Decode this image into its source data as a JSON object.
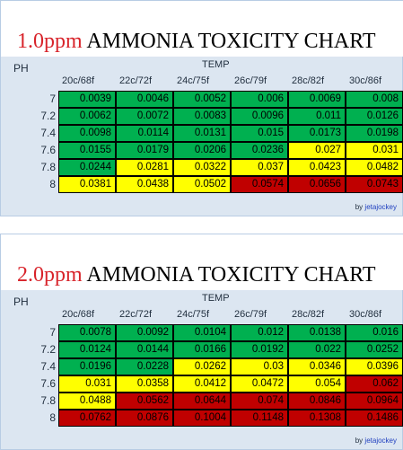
{
  "chart_data": [
    {
      "type": "table",
      "title_prefix": "1.0ppm",
      "title_main": "AMMONIA TOXICITY CHART",
      "row_label": "PH",
      "column_label": "TEMP",
      "columns": [
        "20c/68f",
        "22c/72f",
        "24c/75f",
        "26c/79f",
        "28c/82f",
        "30c/86f"
      ],
      "rows": [
        {
          "ph": "7",
          "values": [
            "0.0039",
            "0.0046",
            "0.0052",
            "0.006",
            "0.0069",
            "0.008"
          ],
          "colors": [
            "#00b050",
            "#00b050",
            "#00b050",
            "#00b050",
            "#00b050",
            "#00b050"
          ]
        },
        {
          "ph": "7.2",
          "values": [
            "0.0062",
            "0.0072",
            "0.0083",
            "0.0096",
            "0.011",
            "0.0126"
          ],
          "colors": [
            "#00b050",
            "#00b050",
            "#00b050",
            "#00b050",
            "#00b050",
            "#00b050"
          ]
        },
        {
          "ph": "7.4",
          "values": [
            "0.0098",
            "0.0114",
            "0.0131",
            "0.015",
            "0.0173",
            "0.0198"
          ],
          "colors": [
            "#00b050",
            "#00b050",
            "#00b050",
            "#00b050",
            "#00b050",
            "#00b050"
          ]
        },
        {
          "ph": "7.6",
          "values": [
            "0.0155",
            "0.0179",
            "0.0206",
            "0.0236",
            "0.027",
            "0.031"
          ],
          "colors": [
            "#00b050",
            "#00b050",
            "#00b050",
            "#00b050",
            "#ffff00",
            "#ffff00"
          ]
        },
        {
          "ph": "7.8",
          "values": [
            "0.0244",
            "0.0281",
            "0.0322",
            "0.037",
            "0.0423",
            "0.0482"
          ],
          "colors": [
            "#00b050",
            "#ffff00",
            "#ffff00",
            "#ffff00",
            "#ffff00",
            "#ffff00"
          ]
        },
        {
          "ph": "8",
          "values": [
            "0.0381",
            "0.0438",
            "0.0502",
            "0.0574",
            "0.0656",
            "0.0743"
          ],
          "colors": [
            "#ffff00",
            "#ffff00",
            "#ffff00",
            "#c00000",
            "#c00000",
            "#c00000"
          ]
        }
      ],
      "credit_prefix": "by",
      "credit_name": "jetajockey"
    },
    {
      "type": "table",
      "title_prefix": "2.0ppm",
      "title_main": "AMMONIA TOXICITY CHART",
      "row_label": "PH",
      "column_label": "TEMP",
      "columns": [
        "20c/68f",
        "22c/72f",
        "24c/75f",
        "26c/79f",
        "28c/82f",
        "30c/86f"
      ],
      "rows": [
        {
          "ph": "7",
          "values": [
            "0.0078",
            "0.0092",
            "0.0104",
            "0.012",
            "0.0138",
            "0.016"
          ],
          "colors": [
            "#00b050",
            "#00b050",
            "#00b050",
            "#00b050",
            "#00b050",
            "#00b050"
          ]
        },
        {
          "ph": "7.2",
          "values": [
            "0.0124",
            "0.0144",
            "0.0166",
            "0.0192",
            "0.022",
            "0.0252"
          ],
          "colors": [
            "#00b050",
            "#00b050",
            "#00b050",
            "#00b050",
            "#00b050",
            "#00b050"
          ]
        },
        {
          "ph": "7.4",
          "values": [
            "0.0196",
            "0.0228",
            "0.0262",
            "0.03",
            "0.0346",
            "0.0396"
          ],
          "colors": [
            "#00b050",
            "#00b050",
            "#ffff00",
            "#ffff00",
            "#ffff00",
            "#ffff00"
          ]
        },
        {
          "ph": "7.6",
          "values": [
            "0.031",
            "0.0358",
            "0.0412",
            "0.0472",
            "0.054",
            "0.062"
          ],
          "colors": [
            "#ffff00",
            "#ffff00",
            "#ffff00",
            "#ffff00",
            "#ffff00",
            "#c00000"
          ]
        },
        {
          "ph": "7.8",
          "values": [
            "0.0488",
            "0.0562",
            "0.0644",
            "0.074",
            "0.0846",
            "0.0964"
          ],
          "colors": [
            "#ffff00",
            "#c00000",
            "#c00000",
            "#c00000",
            "#c00000",
            "#c00000"
          ]
        },
        {
          "ph": "8",
          "values": [
            "0.0762",
            "0.0876",
            "0.1004",
            "0.1148",
            "0.1308",
            "0.1486"
          ],
          "colors": [
            "#c00000",
            "#c00000",
            "#c00000",
            "#c00000",
            "#c00000",
            "#c00000"
          ]
        }
      ],
      "credit_prefix": "by",
      "credit_name": "jetajockey"
    }
  ]
}
